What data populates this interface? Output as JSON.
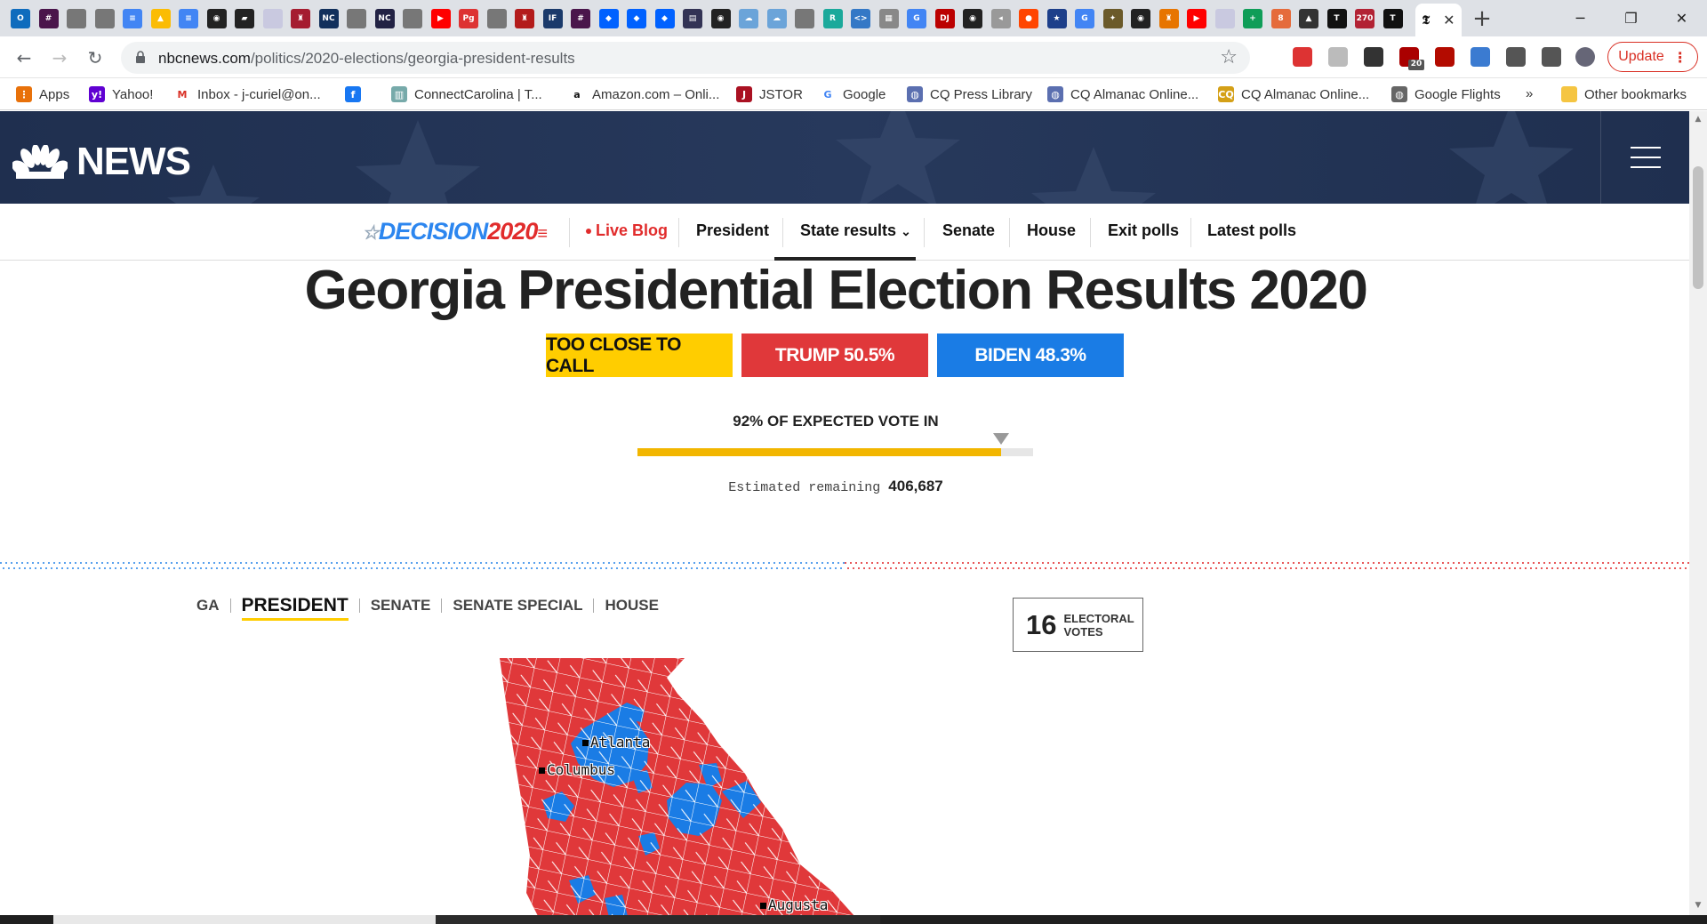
{
  "browser": {
    "url_domain": "nbcnews.com",
    "url_path": "/politics/2020-elections/georgia-president-results",
    "tab_close": "✕",
    "new_tab": "+",
    "update_label": "Update",
    "ext_badge": "20",
    "tab_favicons": [
      {
        "icon": "outlook-icon",
        "color": "#0f6cbd",
        "glyph": "O"
      },
      {
        "icon": "slack-icon",
        "color": "#4a154b",
        "glyph": "#"
      },
      {
        "icon": "globe-icon",
        "color": "#777",
        "glyph": ""
      },
      {
        "icon": "globe-icon",
        "color": "#777",
        "glyph": ""
      },
      {
        "icon": "docs-icon",
        "color": "#4285f4",
        "glyph": "≡"
      },
      {
        "icon": "drive-icon",
        "color": "#fbbc04",
        "glyph": "▲"
      },
      {
        "icon": "docs-icon",
        "color": "#4285f4",
        "glyph": "≡"
      },
      {
        "icon": "github-icon",
        "color": "#222",
        "glyph": "◉"
      },
      {
        "icon": "ny-map-icon",
        "color": "#222",
        "glyph": "▰"
      },
      {
        "icon": "grid-icon",
        "color": "#c9c9e0",
        "glyph": ""
      },
      {
        "icon": "harvard-icon",
        "color": "#a51c30",
        "glyph": "♜"
      },
      {
        "icon": "nc-icon",
        "color": "#12305c",
        "glyph": "NC"
      },
      {
        "icon": "globe-icon",
        "color": "#777",
        "glyph": ""
      },
      {
        "icon": "nc-icon",
        "color": "#224",
        "glyph": "NC"
      },
      {
        "icon": "globe-icon",
        "color": "#777",
        "glyph": ""
      },
      {
        "icon": "youtube-icon",
        "color": "#ff0000",
        "glyph": "▶"
      },
      {
        "icon": "pg-icon",
        "color": "#d33",
        "glyph": "Pg"
      },
      {
        "icon": "globe-icon",
        "color": "#777",
        "glyph": ""
      },
      {
        "icon": "cornell-icon",
        "color": "#b31b1b",
        "glyph": "♜"
      },
      {
        "icon": "ifes-icon",
        "color": "#1b3a6b",
        "glyph": "IF"
      },
      {
        "icon": "slack-icon",
        "color": "#4a154b",
        "glyph": "#"
      },
      {
        "icon": "dropbox-icon",
        "color": "#0061ff",
        "glyph": "◆"
      },
      {
        "icon": "dropbox-icon",
        "color": "#0061ff",
        "glyph": "◆"
      },
      {
        "icon": "dropbox-icon",
        "color": "#0061ff",
        "glyph": "◆"
      },
      {
        "icon": "library-icon",
        "color": "#335",
        "glyph": "▤"
      },
      {
        "icon": "github-icon",
        "color": "#222",
        "glyph": "◉"
      },
      {
        "icon": "cloud-icon",
        "color": "#6ba4d9",
        "glyph": "☁"
      },
      {
        "icon": "cloud-icon",
        "color": "#6ba4d9",
        "glyph": "☁"
      },
      {
        "icon": "globe-icon",
        "color": "#777",
        "glyph": ""
      },
      {
        "icon": "r-icon",
        "color": "#1ba99b",
        "glyph": "R"
      },
      {
        "icon": "code-icon",
        "color": "#3478c6",
        "glyph": "<>"
      },
      {
        "icon": "chart-icon",
        "color": "#888",
        "glyph": "▦"
      },
      {
        "icon": "google-icon",
        "color": "#4285f4",
        "glyph": "G"
      },
      {
        "icon": "doj-icon",
        "color": "#b00",
        "glyph": "DJ"
      },
      {
        "icon": "github-icon",
        "color": "#222",
        "glyph": "◉"
      },
      {
        "icon": "speaker-icon",
        "color": "#999",
        "glyph": "◂"
      },
      {
        "icon": "reddit-icon",
        "color": "#ff4500",
        "glyph": "●"
      },
      {
        "icon": "star-badge-icon",
        "color": "#1d3f8a",
        "glyph": "★"
      },
      {
        "icon": "google-icon",
        "color": "#4285f4",
        "glyph": "G"
      },
      {
        "icon": "seal-icon",
        "color": "#6b5a2a",
        "glyph": "✦"
      },
      {
        "icon": "github-icon",
        "color": "#222",
        "glyph": "◉"
      },
      {
        "icon": "princeton-icon",
        "color": "#e77500",
        "glyph": "♜"
      },
      {
        "icon": "youtube-icon",
        "color": "#ff0000",
        "glyph": "▶"
      },
      {
        "icon": "grid-icon",
        "color": "#c9c9e0",
        "glyph": ""
      },
      {
        "icon": "plus-green-icon",
        "color": "#0f9d58",
        "glyph": "+"
      },
      {
        "icon": "people-icon",
        "color": "#e56b3b",
        "glyph": "8"
      },
      {
        "icon": "nbc-icon",
        "color": "#333",
        "glyph": "▲"
      },
      {
        "icon": "nyt-icon",
        "color": "#111",
        "glyph": "T"
      },
      {
        "icon": "270-icon",
        "color": "#b22234",
        "glyph": "270"
      },
      {
        "icon": "nyt-icon",
        "color": "#111",
        "glyph": "T"
      }
    ],
    "extensions": [
      {
        "icon": "calendar-icon",
        "color": "#d33"
      },
      {
        "icon": "r-ext-icon",
        "color": "#bbb"
      },
      {
        "icon": "flame-icon",
        "color": "#333"
      },
      {
        "icon": "badge-ext-icon",
        "color": "#a00"
      },
      {
        "icon": "pdf-icon",
        "color": "#b30b00"
      },
      {
        "icon": "tool-icon",
        "color": "#3b7bd1"
      },
      {
        "icon": "puzzle-icon",
        "color": "#555"
      },
      {
        "icon": "playlist-icon",
        "color": "#555"
      },
      {
        "icon": "avatar",
        "color": "#667"
      }
    ]
  },
  "bookmarks": [
    {
      "label": "Apps",
      "icon": "apps-grid-icon",
      "color": "#e8710a",
      "glyph": "⋮"
    },
    {
      "label": "Yahoo!",
      "icon": "yahoo-icon",
      "color": "#6001d2",
      "glyph": "y!"
    },
    {
      "label": "Inbox - j-curiel@on...",
      "icon": "gmail-icon",
      "color": "#fff",
      "glyph": "M"
    },
    {
      "label": "",
      "icon": "facebook-icon",
      "color": "#1877f2",
      "glyph": "f"
    },
    {
      "label": "ConnectCarolina | T...",
      "icon": "building-icon",
      "color": "#7aa",
      "glyph": "▥"
    },
    {
      "label": "Amazon.com – Onli...",
      "icon": "amazon-icon",
      "color": "#fff",
      "glyph": "a"
    },
    {
      "label": "JSTOR",
      "icon": "jstor-icon",
      "color": "#a12",
      "glyph": "J"
    },
    {
      "label": "Google",
      "icon": "google-icon",
      "color": "#fff",
      "glyph": "G"
    },
    {
      "label": "CQ Press Library",
      "icon": "globe-icon",
      "color": "#5b6fb0",
      "glyph": "◍"
    },
    {
      "label": "CQ Almanac Online...",
      "icon": "globe-icon",
      "color": "#5b6fb0",
      "glyph": "◍"
    },
    {
      "label": "CQ Almanac Online...",
      "icon": "cq-icon",
      "color": "#d4a017",
      "glyph": "CQ"
    },
    {
      "label": "Google Flights",
      "icon": "globe-icon",
      "color": "#666",
      "glyph": "◍"
    },
    {
      "label": "»",
      "icon": "more-chevron-icon",
      "color": "#fff",
      "glyph": ""
    },
    {
      "label": "Other bookmarks",
      "icon": "folder-icon",
      "color": "#f5c542",
      "glyph": ""
    }
  ],
  "site": {
    "logo_text": "NEWS",
    "decision_brand": "DECISION",
    "decision_year": "2020",
    "nav": [
      "Live Blog",
      "President",
      "State results",
      "Senate",
      "House",
      "Exit polls",
      "Latest polls"
    ],
    "nav_chevron": "⌄"
  },
  "results": {
    "title": "Georgia Presidential Election Results 2020",
    "call_status": "TOO CLOSE TO CALL",
    "trump_label": "TRUMP 50.5%",
    "biden_label": "BIDEN 48.3%",
    "expected_label": "92% OF EXPECTED VOTE IN",
    "expected_fraction": 0.92,
    "remaining_label": "Estimated remaining",
    "remaining_value": "406,687",
    "colors": {
      "call": "#ffcd00",
      "rep": "#e0383a",
      "dem": "#1a7ce5",
      "progress": "#f2b600"
    }
  },
  "race_tabs": [
    "GA",
    "PRESIDENT",
    "SENATE",
    "SENATE SPECIAL",
    "HOUSE"
  ],
  "electoral": {
    "votes": "16",
    "label_line1": "ELECTORAL",
    "label_line2": "VOTES"
  },
  "map": {
    "cities": [
      "Atlanta",
      "Columbus",
      "Augusta"
    ]
  }
}
